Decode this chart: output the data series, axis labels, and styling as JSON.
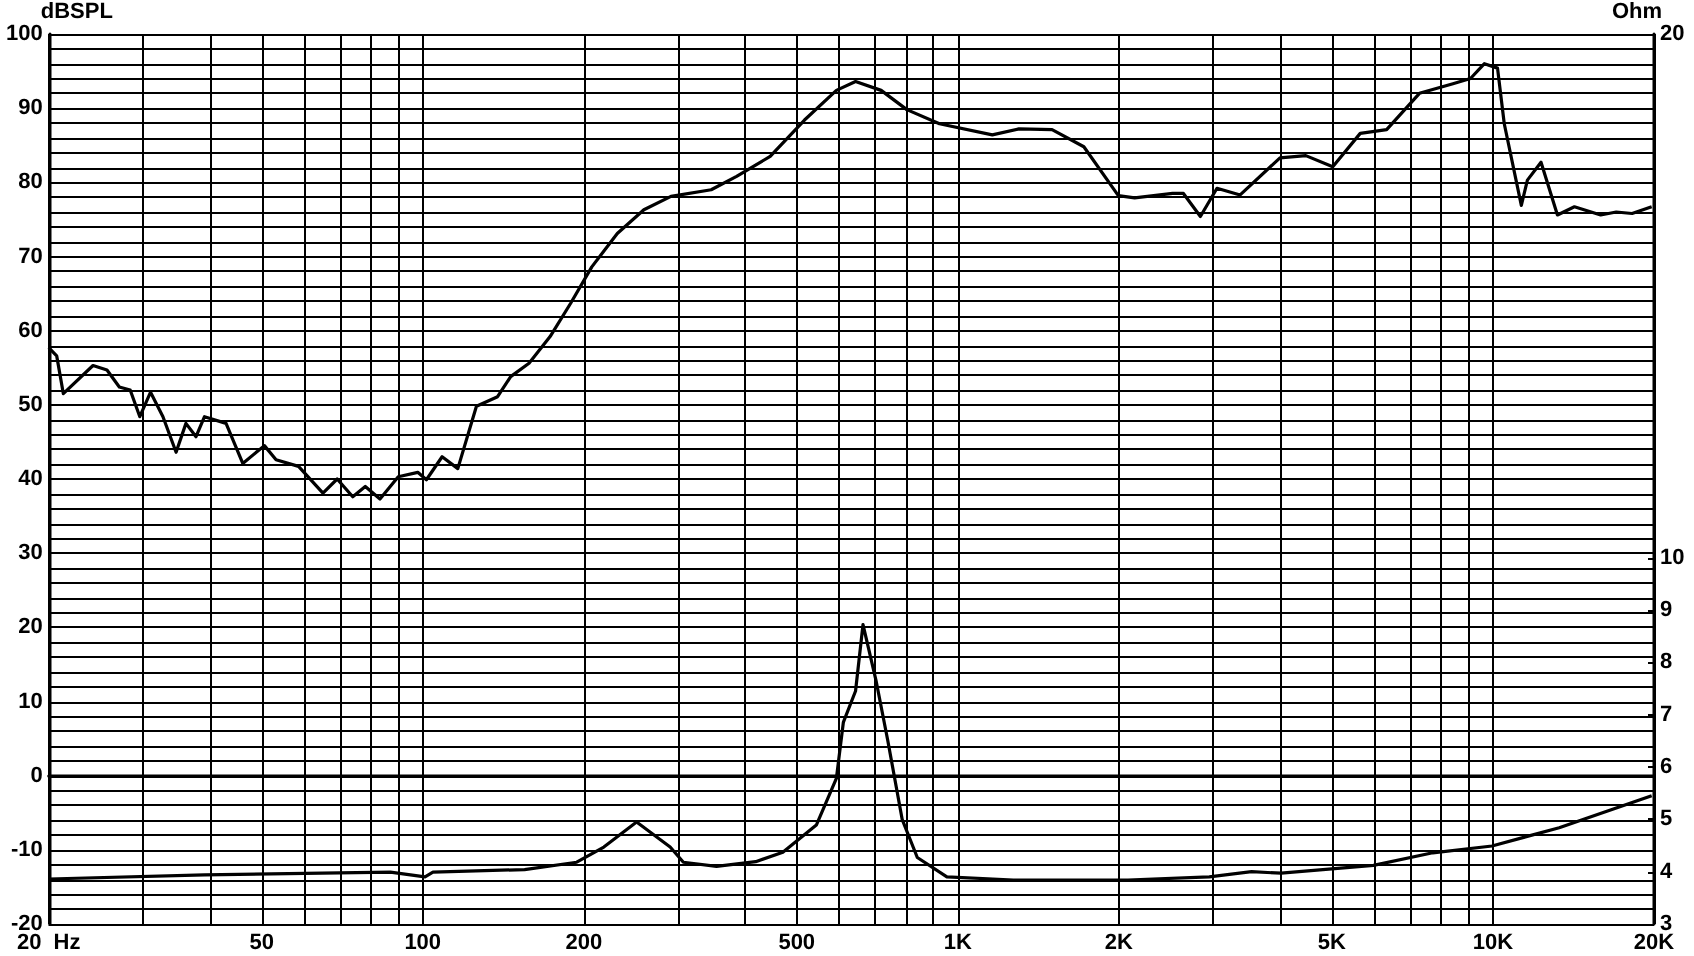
{
  "chart_data": {
    "type": "line",
    "ylabel": "dBSPL",
    "y2label": "Ohm",
    "log": "x",
    "grid": true,
    "marker": "none",
    "line_style": "solid",
    "xlim": [
      20,
      20000
    ],
    "xticks": [
      {
        "value": 20,
        "label": "20  Hz"
      },
      {
        "value": 30,
        "label": null
      },
      {
        "value": 40,
        "label": null
      },
      50,
      {
        "value": 60,
        "label": null
      },
      {
        "value": 70,
        "label": null
      },
      {
        "value": 80,
        "label": null
      },
      {
        "value": 90,
        "label": null
      },
      100,
      200,
      {
        "value": 300,
        "label": null
      },
      {
        "value": 400,
        "label": null
      },
      500,
      {
        "value": 600,
        "label": null
      },
      {
        "value": 700,
        "label": null
      },
      {
        "value": 800,
        "label": null
      },
      {
        "value": 900,
        "label": null
      },
      {
        "value": 1000,
        "label": "1K"
      },
      {
        "value": 2000,
        "label": "2K"
      },
      {
        "value": 3000,
        "label": null
      },
      {
        "value": 4000,
        "label": null
      },
      {
        "value": 5000,
        "label": "5K"
      },
      {
        "value": 6000,
        "label": null
      },
      {
        "value": 7000,
        "label": null
      },
      {
        "value": 8000,
        "label": null
      },
      {
        "value": 9000,
        "label": null
      },
      {
        "value": 10000,
        "label": "10K"
      },
      {
        "value": 20000,
        "label": "20K"
      }
    ],
    "ylim": [
      -20,
      100
    ],
    "yticks": [
      -20,
      {
        "value": -18,
        "label": null
      },
      {
        "value": -16,
        "label": null
      },
      {
        "value": -14,
        "label": null
      },
      {
        "value": -12,
        "label": null
      },
      -10,
      {
        "value": -8,
        "label": null
      },
      {
        "value": -6,
        "label": null
      },
      {
        "value": -4,
        "label": null
      },
      {
        "value": -2,
        "label": null
      },
      0,
      {
        "value": 2,
        "label": null
      },
      {
        "value": 4,
        "label": null
      },
      {
        "value": 6,
        "label": null
      },
      {
        "value": 8,
        "label": null
      },
      10,
      {
        "value": 12,
        "label": null
      },
      {
        "value": 14,
        "label": null
      },
      {
        "value": 16,
        "label": null
      },
      {
        "value": 18,
        "label": null
      },
      20,
      {
        "value": 22,
        "label": null
      },
      {
        "value": 24,
        "label": null
      },
      {
        "value": 26,
        "label": null
      },
      {
        "value": 28,
        "label": null
      },
      30,
      {
        "value": 32,
        "label": null
      },
      {
        "value": 34,
        "label": null
      },
      {
        "value": 36,
        "label": null
      },
      {
        "value": 38,
        "label": null
      },
      40,
      {
        "value": 42,
        "label": null
      },
      {
        "value": 44,
        "label": null
      },
      {
        "value": 46,
        "label": null
      },
      {
        "value": 48,
        "label": null
      },
      50,
      {
        "value": 52,
        "label": null
      },
      {
        "value": 54,
        "label": null
      },
      {
        "value": 56,
        "label": null
      },
      {
        "value": 58,
        "label": null
      },
      60,
      {
        "value": 62,
        "label": null
      },
      {
        "value": 64,
        "label": null
      },
      {
        "value": 66,
        "label": null
      },
      {
        "value": 68,
        "label": null
      },
      70,
      {
        "value": 72,
        "label": null
      },
      {
        "value": 74,
        "label": null
      },
      {
        "value": 76,
        "label": null
      },
      {
        "value": 78,
        "label": null
      },
      80,
      {
        "value": 82,
        "label": null
      },
      {
        "value": 84,
        "label": null
      },
      {
        "value": 86,
        "label": null
      },
      {
        "value": 88,
        "label": null
      },
      90,
      {
        "value": 92,
        "label": null
      },
      {
        "value": 94,
        "label": null
      },
      {
        "value": 96,
        "label": null
      },
      {
        "value": 98,
        "label": null
      },
      100
    ],
    "y2lim": [
      3,
      20
    ],
    "y2ticks": [
      3,
      4,
      5,
      6,
      7,
      8,
      9,
      10,
      20
    ],
    "series": [
      {
        "color": "#000000",
        "x": [
          20,
          20.7,
          21.3,
          24.2,
          25.7,
          27.1,
          28.4,
          29.6,
          31,
          32.7,
          34.6,
          36.1,
          37.7,
          39.1,
          42.9,
          46.1,
          50.6,
          53.2,
          58.6,
          65.1,
          69.2,
          74,
          78.1,
          83.2,
          90,
          97.9,
          101.6,
          108.7,
          116.3,
          126,
          138,
          146,
          158,
          173,
          189,
          207,
          231,
          259,
          291,
          346,
          386,
          446,
          517,
          593,
          644,
          719,
          803,
          924,
          1160,
          1300,
          1500,
          1720,
          1995,
          2140,
          2520,
          2640,
          2840,
          3050,
          3370,
          4000,
          4470,
          5020,
          5650,
          6330,
          7290,
          8420,
          9080,
          9640,
          10200,
          10500,
          11300,
          11600,
          12300,
          13200,
          14200,
          15900,
          17000,
          18200,
          19800
        ],
        "values": [
          57.7,
          56.6,
          51.5,
          55.3,
          54.7,
          52.4,
          52.0,
          48.4,
          51.7,
          48.4,
          43.6,
          47.5,
          45.7,
          48.4,
          47.5,
          42.1,
          44.5,
          42.6,
          41.7,
          38.1,
          40.0,
          37.6,
          39.0,
          37.3,
          40.3,
          40.9,
          39.9,
          43.0,
          41.4,
          49.8,
          51.1,
          53.8,
          55.6,
          59.2,
          63.7,
          68.6,
          73.1,
          76.3,
          78.1,
          79.0,
          80.8,
          83.5,
          88.4,
          92.4,
          93.6,
          92.4,
          89.8,
          87.9,
          86.4,
          87.2,
          87.1,
          84.8,
          78.2,
          77.9,
          78.5,
          78.5,
          75.4,
          79.2,
          78.3,
          83.3,
          83.6,
          82.1,
          86.6,
          87.1,
          92.0,
          93.3,
          94.0,
          96.0,
          95.4,
          87.9,
          76.9,
          80.3,
          82.7,
          75.6,
          76.7,
          75.6,
          76.0,
          75.8,
          76.7
        ]
      },
      {
        "color": "#000000",
        "axis": "y2",
        "x": [
          20,
          39.1,
          87,
          101,
          104.5,
          155,
          194,
          218,
          251,
          290,
          307,
          354,
          419,
          471,
          544,
          593,
          611,
          644,
          665,
          703,
          739,
          787,
          840,
          954,
          1270,
          2080,
          2950,
          3540,
          4020,
          5980,
          7720,
          9960,
          13300,
          19800
        ],
        "values": [
          3.86,
          3.94,
          3.99,
          3.9,
          3.99,
          4.04,
          4.18,
          4.47,
          4.95,
          4.47,
          4.18,
          4.1,
          4.19,
          4.37,
          4.89,
          5.78,
          6.85,
          7.45,
          8.72,
          7.66,
          6.53,
          5.0,
          4.27,
          3.9,
          3.84,
          3.84,
          3.9,
          4.0,
          3.97,
          4.12,
          4.36,
          4.49,
          4.84,
          5.45
        ]
      }
    ]
  }
}
